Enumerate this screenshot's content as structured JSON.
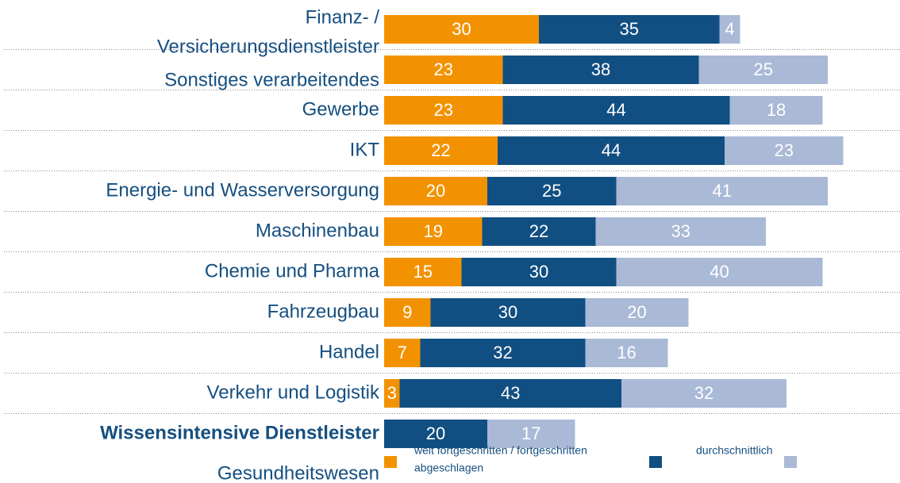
{
  "chart_data": {
    "type": "stacked-bar",
    "categories": [
      [
        "Finanz- /",
        "Versicherungsdienstleister"
      ],
      [
        "Sonstiges verarbeitendes",
        "Gewerbe"
      ],
      [
        "IKT"
      ],
      [
        "Energie- und Wasserversorgung"
      ],
      [
        "Maschinenbau"
      ],
      [
        "Chemie und Pharma"
      ],
      [
        "Fahrzeugbau"
      ],
      [
        "Handel"
      ],
      [
        "Verkehr und Logistik"
      ],
      [
        "Wissensintensive Dienstleister"
      ],
      [
        "Gesundheitswesen"
      ]
    ],
    "series": [
      {
        "name": "weit fortgeschritten / fortgeschritten",
        "color": "#f39200",
        "values": [
          30,
          23,
          23,
          22,
          20,
          19,
          15,
          9,
          7,
          3,
          null
        ]
      },
      {
        "name": "durchschnittlich",
        "color": "#114f82",
        "values": [
          35,
          38,
          44,
          44,
          25,
          22,
          30,
          30,
          32,
          43,
          20
        ]
      },
      {
        "name": "abgeschlagen",
        "color": "#a9b9d6",
        "values": [
          4,
          25,
          18,
          23,
          41,
          33,
          40,
          20,
          16,
          32,
          17
        ]
      }
    ],
    "bold_category": 9
  }
}
